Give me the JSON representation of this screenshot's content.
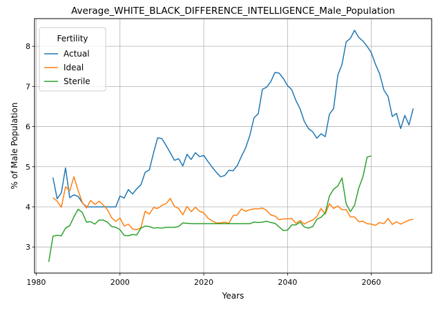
{
  "chart_data": {
    "type": "line",
    "title": "Average_WHITE_BLACK_DIFFERENCE_INTELLIGENCE_Male_Population",
    "xlabel": "Years",
    "ylabel": "% of Male Population",
    "xlim": [
      1979.6,
      2074.4
    ],
    "ylim": [
      2.35,
      8.69
    ],
    "xticks": [
      "1980",
      "2000",
      "2020",
      "2040",
      "2060"
    ],
    "yticks": [
      "3",
      "4",
      "5",
      "6",
      "7",
      "8"
    ],
    "grid": true,
    "legend": {
      "title": "Fertility",
      "placement": "upper-left"
    },
    "series": [
      {
        "name": "Actual",
        "color": "#1f77b4",
        "points": [
          [
            1984,
            4.73
          ],
          [
            1985,
            4.2
          ],
          [
            1986,
            4.35
          ],
          [
            1987,
            4.97
          ],
          [
            1988,
            4.23
          ],
          [
            1989,
            4.3
          ],
          [
            1990,
            4.26
          ],
          [
            1991,
            4.1
          ],
          [
            1992,
            4.0
          ],
          [
            1993,
            4.0
          ],
          [
            1994,
            4.0
          ],
          [
            1995,
            4.0
          ],
          [
            1996,
            4.0
          ],
          [
            1997,
            4.0
          ],
          [
            1998,
            4.0
          ],
          [
            1999,
            4.0
          ],
          [
            2000,
            4.27
          ],
          [
            2001,
            4.22
          ],
          [
            2002,
            4.43
          ],
          [
            2003,
            4.32
          ],
          [
            2004,
            4.45
          ],
          [
            2005,
            4.55
          ],
          [
            2006,
            4.86
          ],
          [
            2007,
            4.92
          ],
          [
            2008,
            5.34
          ],
          [
            2009,
            5.72
          ],
          [
            2010,
            5.7
          ],
          [
            2011,
            5.53
          ],
          [
            2012,
            5.35
          ],
          [
            2013,
            5.16
          ],
          [
            2014,
            5.2
          ],
          [
            2015,
            5.02
          ],
          [
            2016,
            5.31
          ],
          [
            2017,
            5.18
          ],
          [
            2018,
            5.35
          ],
          [
            2019,
            5.25
          ],
          [
            2020,
            5.28
          ],
          [
            2021,
            5.13
          ],
          [
            2022,
            4.99
          ],
          [
            2023,
            4.86
          ],
          [
            2024,
            4.75
          ],
          [
            2025,
            4.78
          ],
          [
            2026,
            4.91
          ],
          [
            2027,
            4.9
          ],
          [
            2028,
            5.03
          ],
          [
            2029,
            5.26
          ],
          [
            2030,
            5.47
          ],
          [
            2031,
            5.78
          ],
          [
            2032,
            6.22
          ],
          [
            2033,
            6.32
          ],
          [
            2034,
            6.93
          ],
          [
            2035,
            6.98
          ],
          [
            2036,
            7.12
          ],
          [
            2037,
            7.35
          ],
          [
            2038,
            7.33
          ],
          [
            2039,
            7.2
          ],
          [
            2040,
            7.02
          ],
          [
            2041,
            6.92
          ],
          [
            2042,
            6.65
          ],
          [
            2043,
            6.44
          ],
          [
            2044,
            6.13
          ],
          [
            2045,
            5.95
          ],
          [
            2046,
            5.87
          ],
          [
            2047,
            5.71
          ],
          [
            2048,
            5.82
          ],
          [
            2049,
            5.75
          ],
          [
            2050,
            6.31
          ],
          [
            2051,
            6.45
          ],
          [
            2052,
            7.28
          ],
          [
            2053,
            7.55
          ],
          [
            2054,
            8.11
          ],
          [
            2055,
            8.2
          ],
          [
            2056,
            8.4
          ],
          [
            2057,
            8.22
          ],
          [
            2058,
            8.13
          ],
          [
            2059,
            8.0
          ],
          [
            2060,
            7.84
          ],
          [
            2061,
            7.55
          ],
          [
            2062,
            7.31
          ],
          [
            2063,
            6.91
          ],
          [
            2064,
            6.75
          ],
          [
            2065,
            6.25
          ],
          [
            2066,
            6.33
          ],
          [
            2067,
            5.95
          ],
          [
            2068,
            6.28
          ],
          [
            2069,
            6.04
          ],
          [
            2070,
            6.45
          ]
        ]
      },
      {
        "name": "Ideal",
        "color": "#ff7f0e",
        "points": [
          [
            1984,
            4.23
          ],
          [
            1985,
            4.14
          ],
          [
            1986,
            3.99
          ],
          [
            1987,
            4.5
          ],
          [
            1988,
            4.4
          ],
          [
            1989,
            4.75
          ],
          [
            1990,
            4.41
          ],
          [
            1991,
            4.11
          ],
          [
            1992,
            3.97
          ],
          [
            1993,
            4.16
          ],
          [
            1994,
            4.06
          ],
          [
            1995,
            4.14
          ],
          [
            1996,
            4.05
          ],
          [
            1997,
            3.93
          ],
          [
            1998,
            3.73
          ],
          [
            1999,
            3.64
          ],
          [
            2000,
            3.72
          ],
          [
            2001,
            3.52
          ],
          [
            2002,
            3.57
          ],
          [
            2003,
            3.45
          ],
          [
            2004,
            3.43
          ],
          [
            2005,
            3.48
          ],
          [
            2006,
            3.89
          ],
          [
            2007,
            3.82
          ],
          [
            2008,
            3.98
          ],
          [
            2009,
            3.96
          ],
          [
            2010,
            4.04
          ],
          [
            2011,
            4.08
          ],
          [
            2012,
            4.21
          ],
          [
            2013,
            4.01
          ],
          [
            2014,
            3.96
          ],
          [
            2015,
            3.8
          ],
          [
            2016,
            4.01
          ],
          [
            2017,
            3.88
          ],
          [
            2018,
            3.99
          ],
          [
            2019,
            3.89
          ],
          [
            2020,
            3.85
          ],
          [
            2021,
            3.72
          ],
          [
            2022,
            3.65
          ],
          [
            2023,
            3.6
          ],
          [
            2024,
            3.6
          ],
          [
            2025,
            3.62
          ],
          [
            2026,
            3.59
          ],
          [
            2027,
            3.78
          ],
          [
            2028,
            3.8
          ],
          [
            2029,
            3.95
          ],
          [
            2030,
            3.89
          ],
          [
            2031,
            3.93
          ],
          [
            2032,
            3.95
          ],
          [
            2033,
            3.95
          ],
          [
            2034,
            3.97
          ],
          [
            2035,
            3.91
          ],
          [
            2036,
            3.8
          ],
          [
            2037,
            3.77
          ],
          [
            2038,
            3.68
          ],
          [
            2039,
            3.7
          ],
          [
            2040,
            3.7
          ],
          [
            2041,
            3.71
          ],
          [
            2042,
            3.59
          ],
          [
            2043,
            3.66
          ],
          [
            2044,
            3.57
          ],
          [
            2045,
            3.63
          ],
          [
            2046,
            3.67
          ],
          [
            2047,
            3.76
          ],
          [
            2048,
            3.96
          ],
          [
            2049,
            3.82
          ],
          [
            2050,
            4.08
          ],
          [
            2051,
            3.96
          ],
          [
            2052,
            4.02
          ],
          [
            2053,
            3.93
          ],
          [
            2054,
            3.93
          ],
          [
            2055,
            3.75
          ],
          [
            2056,
            3.75
          ],
          [
            2057,
            3.63
          ],
          [
            2058,
            3.64
          ],
          [
            2059,
            3.58
          ],
          [
            2060,
            3.57
          ],
          [
            2061,
            3.54
          ],
          [
            2062,
            3.61
          ],
          [
            2063,
            3.58
          ],
          [
            2064,
            3.71
          ],
          [
            2065,
            3.56
          ],
          [
            2066,
            3.63
          ],
          [
            2067,
            3.57
          ],
          [
            2068,
            3.62
          ],
          [
            2069,
            3.67
          ],
          [
            2070,
            3.69
          ]
        ]
      },
      {
        "name": "Sterile",
        "color": "#2ca02c",
        "points": [
          [
            1983,
            2.63
          ],
          [
            1984,
            3.27
          ],
          [
            1985,
            3.29
          ],
          [
            1986,
            3.28
          ],
          [
            1987,
            3.47
          ],
          [
            1988,
            3.53
          ],
          [
            1989,
            3.75
          ],
          [
            1990,
            3.94
          ],
          [
            1991,
            3.86
          ],
          [
            1992,
            3.62
          ],
          [
            1993,
            3.63
          ],
          [
            1994,
            3.57
          ],
          [
            1995,
            3.67
          ],
          [
            1996,
            3.67
          ],
          [
            1997,
            3.62
          ],
          [
            1998,
            3.51
          ],
          [
            1999,
            3.49
          ],
          [
            2000,
            3.43
          ],
          [
            2001,
            3.29
          ],
          [
            2002,
            3.28
          ],
          [
            2003,
            3.31
          ],
          [
            2004,
            3.3
          ],
          [
            2005,
            3.47
          ],
          [
            2006,
            3.52
          ],
          [
            2007,
            3.51
          ],
          [
            2008,
            3.47
          ],
          [
            2009,
            3.48
          ],
          [
            2010,
            3.47
          ],
          [
            2011,
            3.49
          ],
          [
            2012,
            3.49
          ],
          [
            2013,
            3.49
          ],
          [
            2014,
            3.51
          ],
          [
            2015,
            3.6
          ],
          [
            2016,
            3.59
          ],
          [
            2017,
            3.58
          ],
          [
            2018,
            3.58
          ],
          [
            2019,
            3.58
          ],
          [
            2020,
            3.58
          ],
          [
            2021,
            3.58
          ],
          [
            2022,
            3.58
          ],
          [
            2023,
            3.58
          ],
          [
            2024,
            3.58
          ],
          [
            2025,
            3.58
          ],
          [
            2026,
            3.58
          ],
          [
            2027,
            3.58
          ],
          [
            2028,
            3.58
          ],
          [
            2029,
            3.58
          ],
          [
            2030,
            3.58
          ],
          [
            2031,
            3.58
          ],
          [
            2032,
            3.62
          ],
          [
            2033,
            3.61
          ],
          [
            2034,
            3.62
          ],
          [
            2035,
            3.64
          ],
          [
            2036,
            3.61
          ],
          [
            2037,
            3.59
          ],
          [
            2038,
            3.5
          ],
          [
            2039,
            3.41
          ],
          [
            2040,
            3.42
          ],
          [
            2041,
            3.55
          ],
          [
            2042,
            3.55
          ],
          [
            2043,
            3.62
          ],
          [
            2044,
            3.5
          ],
          [
            2045,
            3.47
          ],
          [
            2046,
            3.51
          ],
          [
            2047,
            3.69
          ],
          [
            2048,
            3.74
          ],
          [
            2049,
            3.85
          ],
          [
            2050,
            4.27
          ],
          [
            2051,
            4.44
          ],
          [
            2052,
            4.52
          ],
          [
            2053,
            4.72
          ],
          [
            2054,
            4.07
          ],
          [
            2055,
            3.88
          ],
          [
            2056,
            4.04
          ],
          [
            2057,
            4.47
          ],
          [
            2058,
            4.75
          ],
          [
            2059,
            5.24
          ],
          [
            2060,
            5.27
          ]
        ]
      }
    ]
  }
}
